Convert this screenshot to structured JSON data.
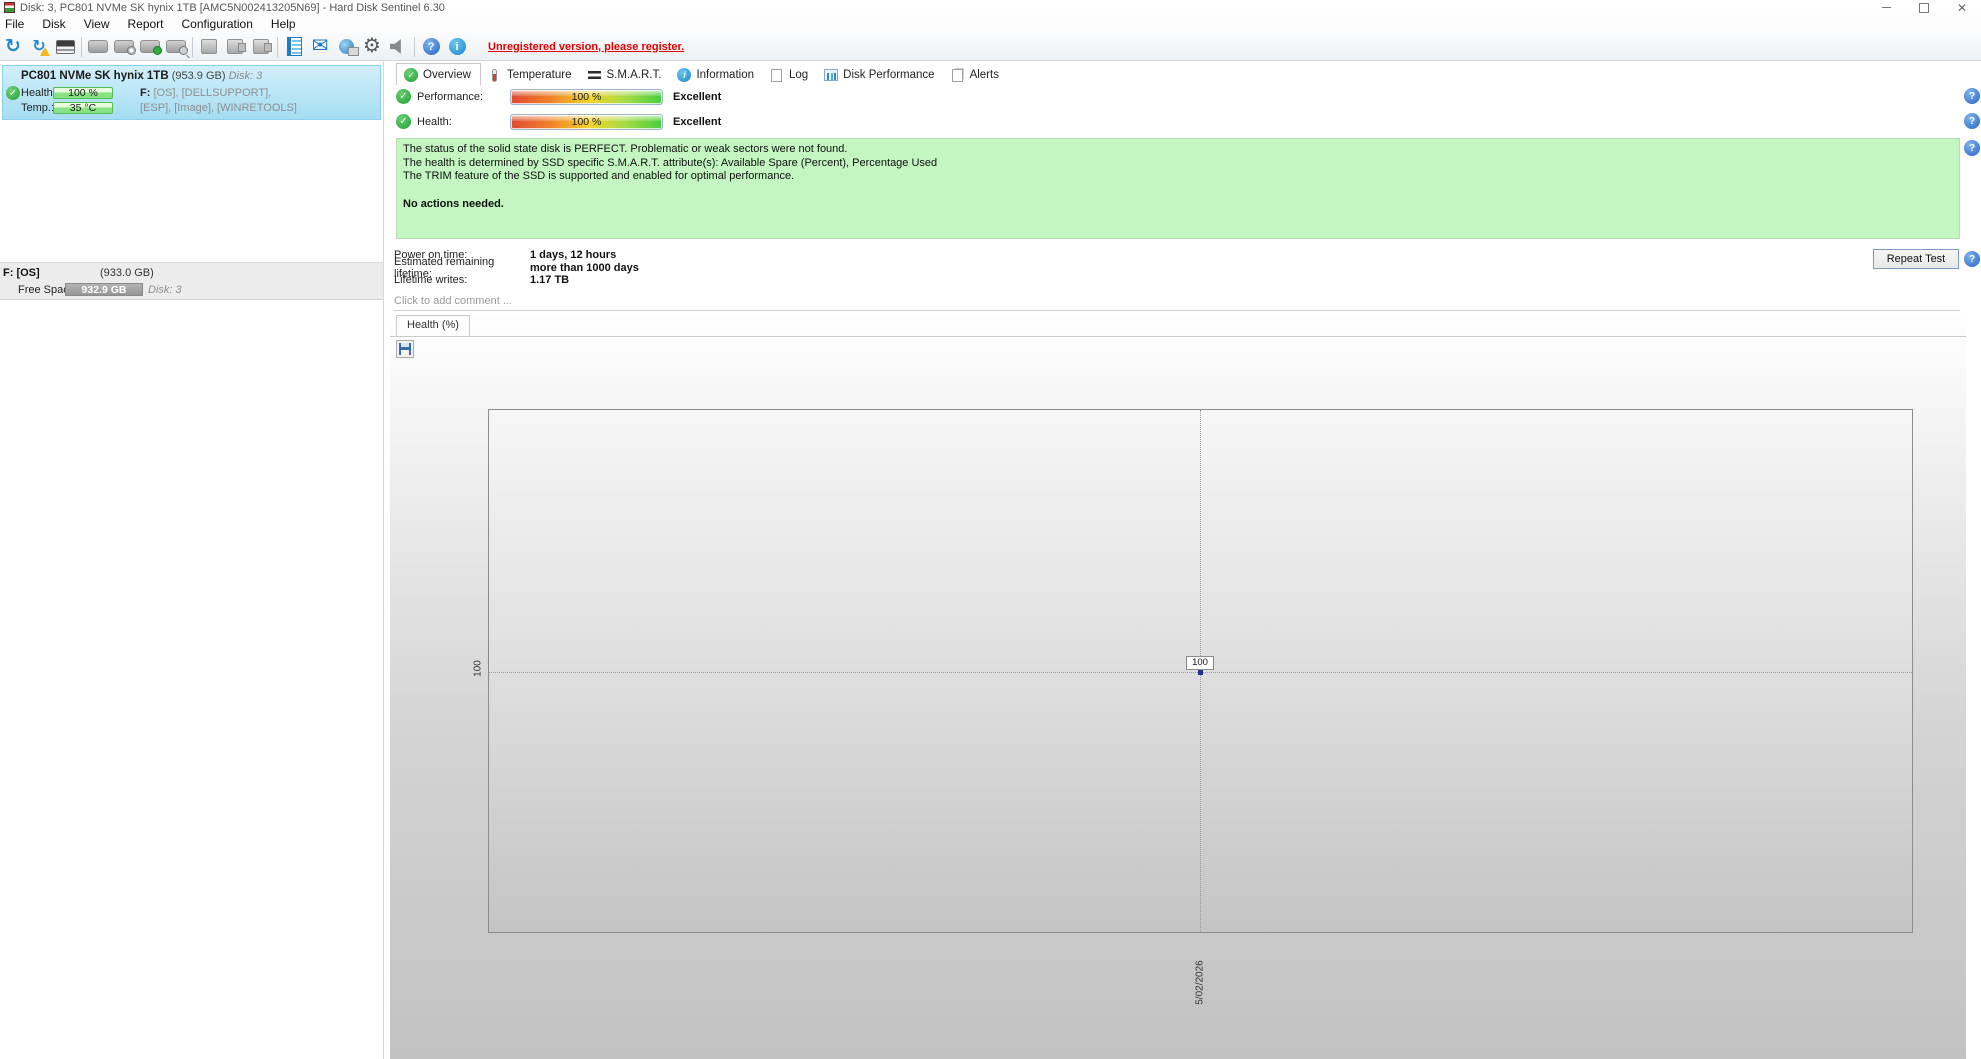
{
  "window": {
    "title": "Disk: 3, PC801 NVMe SK hynix 1TB [AMC5N002413205N69]  -  Hard Disk Sentinel 6.30"
  },
  "menu": {
    "items": [
      "File",
      "Disk",
      "View",
      "Report",
      "Configuration",
      "Help"
    ]
  },
  "toolbar": {
    "unregistered_text": "Unregistered version, please register.",
    "icons": [
      "refresh-icon",
      "refresh-warning-icon",
      "smart-details-icon",
      "disk-icon",
      "disk-clock-icon",
      "disk-ok-icon",
      "disk-search-icon",
      "drive-icon",
      "drive-connect-icon",
      "drive-eject-icon",
      "report-icon",
      "mail-icon",
      "network-icon",
      "settings-icon",
      "sound-icon",
      "help-icon",
      "info-icon"
    ]
  },
  "sidebar": {
    "disk_card": {
      "name": "PC801 NVMe SK hynix 1TB",
      "size": "(953.9 GB)",
      "disk": "Disk: 3",
      "health_label": "Health:",
      "health_value": "100 %",
      "temp_label": "Temp.:",
      "temp_value": "35 °C",
      "vol_bold": "F:",
      "vol_rest": " [OS],  [DELLSUPPORT],",
      "vol_line2": "[ESP],  [Image],  [WINRETOOLS]"
    },
    "partition": {
      "name": "F: [OS]",
      "size": "(933.0 GB)",
      "free_label": "Free Space",
      "free_value": "932.9 GB",
      "disk": "Disk: 3"
    }
  },
  "tabs": [
    {
      "label": "Overview"
    },
    {
      "label": "Temperature"
    },
    {
      "label": "S.M.A.R.T."
    },
    {
      "label": "Information"
    },
    {
      "label": "Log"
    },
    {
      "label": "Disk Performance"
    },
    {
      "label": "Alerts"
    }
  ],
  "overview": {
    "performance_label": "Performance:",
    "performance_value": "100 %",
    "performance_rating": "Excellent",
    "health_label": "Health:",
    "health_value": "100 %",
    "health_rating": "Excellent",
    "status": {
      "line1": "The status of the solid state disk is PERFECT. Problematic or weak sectors were not found.",
      "line2": "The health is determined by SSD specific S.M.A.R.T. attribute(s):  Available Spare (Percent), Percentage Used",
      "line3": "The TRIM feature of the SSD is supported and enabled for optimal performance.",
      "action": "No actions needed."
    },
    "stats": [
      {
        "label": "Power on time:",
        "value": "1 days, 12 hours"
      },
      {
        "label": "Estimated remaining lifetime:",
        "value": "more than 1000 days"
      },
      {
        "label": "Lifetime writes:",
        "value": "1.17 TB"
      }
    ],
    "repeat_test_label": "Repeat Test",
    "comment_placeholder": "Click to add comment ..."
  },
  "chart": {
    "title": "Health (%)",
    "y_tick": "100",
    "point_label": "100",
    "x_tick": "5/02/2026"
  },
  "chart_data": {
    "type": "line",
    "title": "Health (%)",
    "x": [
      "5/02/2026"
    ],
    "series": [
      {
        "name": "Health (%)",
        "values": [
          100
        ]
      }
    ],
    "y_ticks": [
      100
    ],
    "grid": "dotted"
  },
  "colors": {
    "selected_item_blue": "#a5ddf2",
    "health_bar_green": "#86e283",
    "status_box_green": "#c3f6c1",
    "unregistered_red": "#e00000",
    "spectrum_gradient": [
      "#e14a31",
      "#f2d32b",
      "#46ce3c"
    ]
  }
}
